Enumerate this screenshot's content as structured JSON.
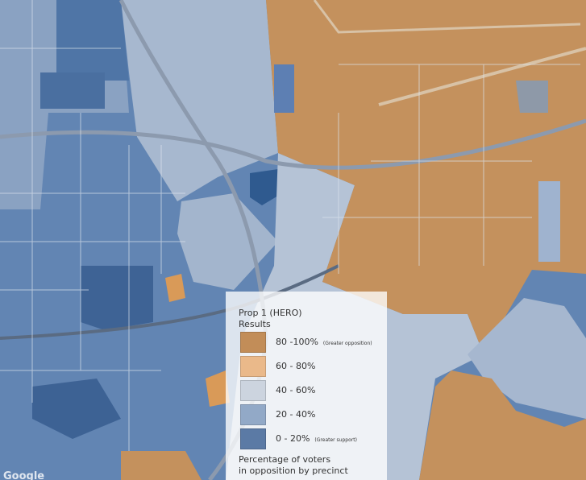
{
  "legend": {
    "title": "Prop 1 (HERO)",
    "subtitle": "Results",
    "items": [
      {
        "label": "80 -100%",
        "note": "(Greater opposition)",
        "color": "#c28d58"
      },
      {
        "label": "60 - 80%",
        "color": "#eab98a"
      },
      {
        "label": "40 - 60%",
        "color": "#ccd4df"
      },
      {
        "label": "20 - 40%",
        "color": "#92a9c7"
      },
      {
        "label": "0 - 20%",
        "note": "(Greater support)",
        "color": "#5b7aa5"
      }
    ],
    "footer": [
      "Percentage of voters",
      "in opposition by precinct"
    ]
  },
  "attribution": "Google"
}
